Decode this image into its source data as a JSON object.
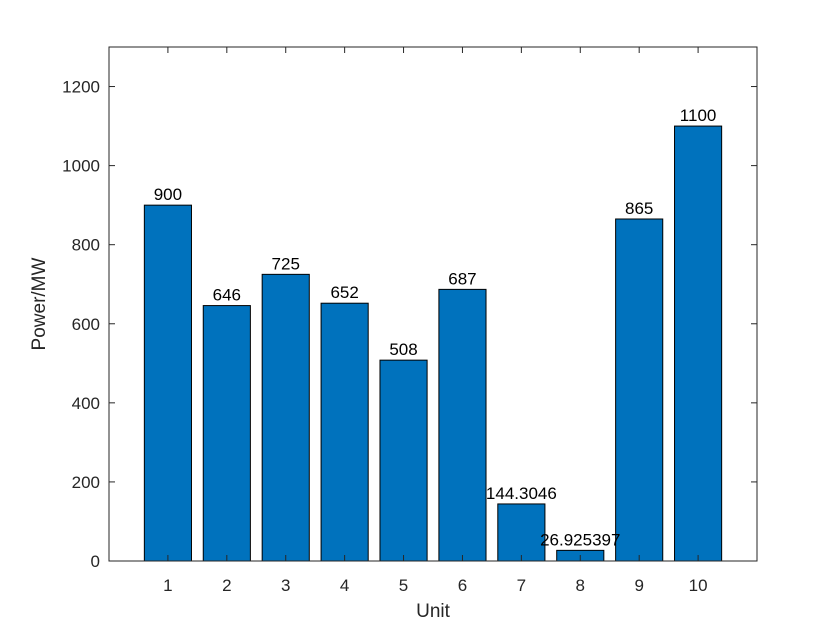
{
  "chart_data": {
    "type": "bar",
    "categories": [
      "1",
      "2",
      "3",
      "4",
      "5",
      "6",
      "7",
      "8",
      "9",
      "10"
    ],
    "values": [
      900,
      646,
      725,
      652,
      508,
      687,
      144.3046,
      26.925397,
      865,
      1100
    ],
    "data_labels": [
      "900",
      "646",
      "725",
      "652",
      "508",
      "687",
      "144.3046",
      "26.925397",
      "865",
      "1100"
    ],
    "xlabel": "Unit",
    "ylabel": "Power/MW",
    "ylim": [
      0,
      1300
    ],
    "yticks": [
      0,
      200,
      400,
      600,
      800,
      1000,
      1200
    ],
    "xlim": [
      0,
      11
    ],
    "grid": false,
    "bar_color": "#0072BD",
    "axis_color": "#262626"
  }
}
